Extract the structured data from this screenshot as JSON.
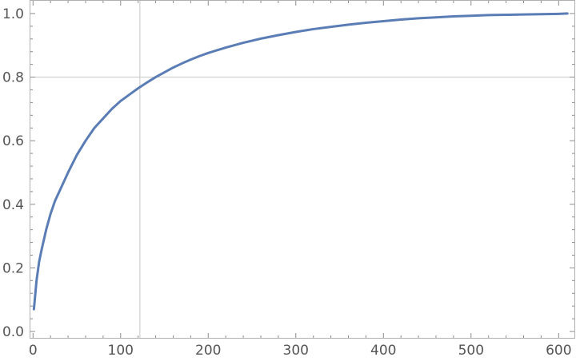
{
  "chart_data": {
    "type": "line",
    "title": "",
    "xlabel": "",
    "ylabel": "",
    "xlim": [
      -3,
      618
    ],
    "ylim": [
      -0.02,
      1.04
    ],
    "x_ticks": [
      0,
      100,
      200,
      300,
      400,
      500,
      600
    ],
    "x_tick_labels": [
      "0",
      "100",
      "200",
      "300",
      "400",
      "500",
      "600"
    ],
    "y_ticks": [
      0,
      0.2,
      0.4,
      0.6,
      0.8,
      1.0
    ],
    "y_tick_labels": [
      "0.0",
      "0.2",
      "0.4",
      "0.6",
      "0.8",
      "1.0"
    ],
    "grid": {
      "x": [
        122
      ],
      "y": [
        0.8
      ]
    },
    "colors": {
      "series": "#5b7db5",
      "frame": "#b0b0b0",
      "grid": "#c8c8c8",
      "text": "#555555"
    },
    "series": [
      {
        "x": [
          1,
          2,
          4,
          7,
          10,
          15,
          20,
          25,
          30,
          40,
          50,
          60,
          70,
          80,
          90,
          100,
          110,
          120,
          130,
          140,
          150,
          160,
          170,
          180,
          190,
          200,
          220,
          240,
          260,
          280,
          300,
          320,
          340,
          360,
          380,
          400,
          420,
          440,
          460,
          480,
          500,
          520,
          540,
          560,
          580,
          600,
          610
        ],
        "y": [
          0.07,
          0.1,
          0.16,
          0.22,
          0.26,
          0.32,
          0.37,
          0.41,
          0.44,
          0.5,
          0.555,
          0.6,
          0.64,
          0.67,
          0.7,
          0.725,
          0.745,
          0.765,
          0.783,
          0.8,
          0.815,
          0.83,
          0.843,
          0.855,
          0.866,
          0.876,
          0.893,
          0.908,
          0.921,
          0.932,
          0.942,
          0.951,
          0.958,
          0.965,
          0.971,
          0.976,
          0.981,
          0.985,
          0.988,
          0.991,
          0.993,
          0.995,
          0.996,
          0.997,
          0.998,
          0.999,
          1.0
        ]
      }
    ]
  }
}
